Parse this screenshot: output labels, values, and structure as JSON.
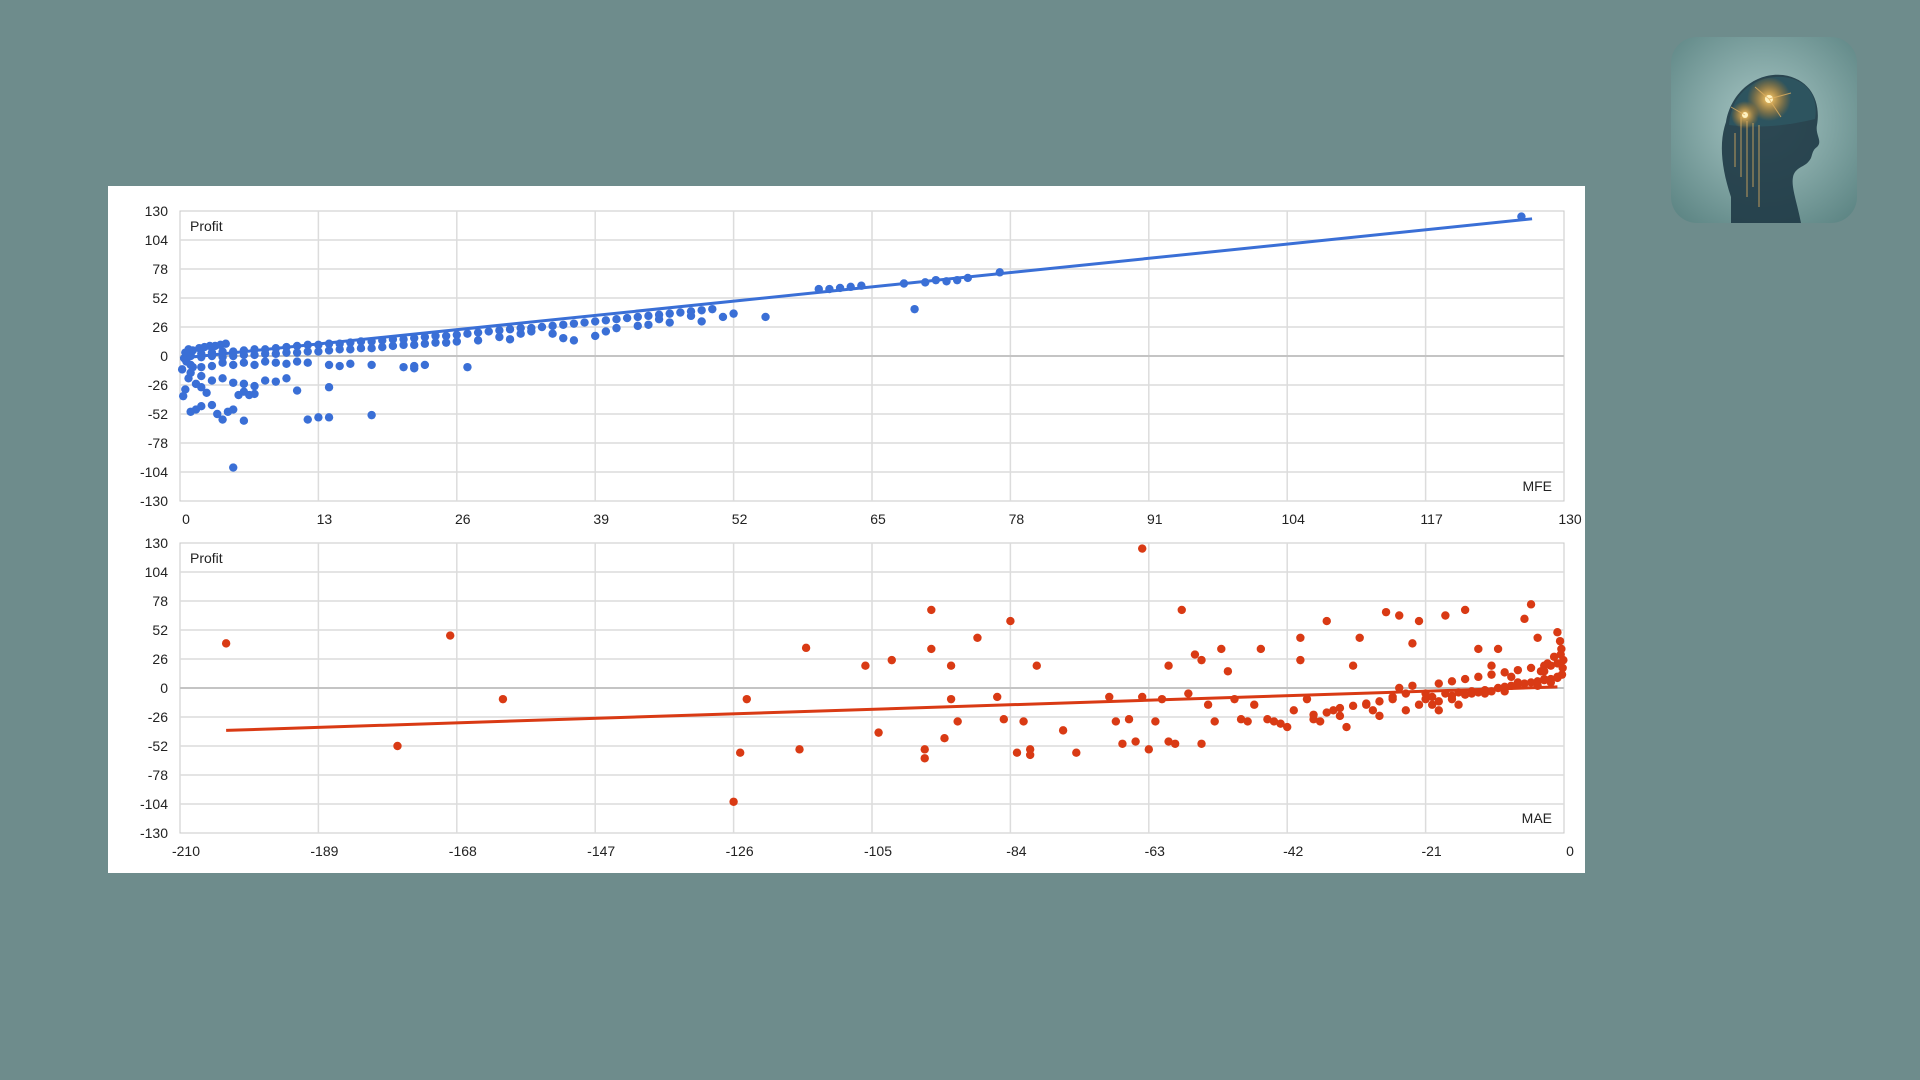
{
  "logo": {
    "icon": "ai-brain-head-icon"
  },
  "chart_data": [
    {
      "type": "scatter",
      "ylabel": "Profit",
      "xlabel": "MFE",
      "xlim": [
        0,
        130
      ],
      "ylim": [
        -130,
        130
      ],
      "x_ticks": [
        "0",
        "13",
        "26",
        "39",
        "52",
        "65",
        "78",
        "91",
        "104",
        "117",
        "130"
      ],
      "y_ticks": [
        "130",
        "104",
        "78",
        "52",
        "26",
        "0",
        "-26",
        "-52",
        "-78",
        "-104",
        "-130"
      ],
      "grid": true,
      "color": "#3a6fd6",
      "trendline": {
        "x": [
          0,
          127
        ],
        "y": [
          -2,
          123
        ]
      },
      "points": [
        [
          0.3,
          -36
        ],
        [
          0.5,
          -30
        ],
        [
          0.8,
          -20
        ],
        [
          1,
          -15
        ],
        [
          1.2,
          -10
        ],
        [
          0.6,
          -5
        ],
        [
          0.4,
          -2
        ],
        [
          1.5,
          -25
        ],
        [
          2,
          -28
        ],
        [
          2.5,
          -33
        ],
        [
          1,
          -50
        ],
        [
          1.5,
          -48
        ],
        [
          2,
          -45
        ],
        [
          3,
          -44
        ],
        [
          3.5,
          -52
        ],
        [
          4,
          -57
        ],
        [
          4.5,
          -50
        ],
        [
          5,
          -48
        ],
        [
          6,
          -58
        ],
        [
          5.5,
          -35
        ],
        [
          6,
          -32
        ],
        [
          6.5,
          -35
        ],
        [
          7,
          -34
        ],
        [
          5,
          -100
        ],
        [
          11,
          -31
        ],
        [
          12,
          -57
        ],
        [
          13,
          -55
        ],
        [
          14,
          -55
        ],
        [
          14,
          -28
        ],
        [
          18,
          -53
        ],
        [
          2,
          -18
        ],
        [
          3,
          -22
        ],
        [
          4,
          -20
        ],
        [
          5,
          -24
        ],
        [
          6,
          -25
        ],
        [
          7,
          -27
        ],
        [
          8,
          -22
        ],
        [
          9,
          -23
        ],
        [
          10,
          -20
        ],
        [
          1,
          -8
        ],
        [
          2,
          -10
        ],
        [
          3,
          -9
        ],
        [
          4,
          -6
        ],
        [
          5,
          -8
        ],
        [
          6,
          -6
        ],
        [
          7,
          -8
        ],
        [
          8,
          -5
        ],
        [
          9,
          -6
        ],
        [
          10,
          -7
        ],
        [
          11,
          -5
        ],
        [
          12,
          -6
        ],
        [
          14,
          -8
        ],
        [
          15,
          -9
        ],
        [
          16,
          -7
        ],
        [
          18,
          -8
        ],
        [
          21,
          -10
        ],
        [
          22,
          -9
        ],
        [
          23,
          -8
        ],
        [
          27,
          -10
        ],
        [
          22,
          -11
        ],
        [
          1,
          1
        ],
        [
          2,
          2
        ],
        [
          3,
          3
        ],
        [
          4,
          4
        ],
        [
          5,
          4
        ],
        [
          6,
          5
        ],
        [
          7,
          6
        ],
        [
          8,
          6
        ],
        [
          9,
          7
        ],
        [
          10,
          8
        ],
        [
          11,
          9
        ],
        [
          12,
          10
        ],
        [
          13,
          10
        ],
        [
          14,
          11
        ],
        [
          15,
          11
        ],
        [
          16,
          12
        ],
        [
          17,
          13
        ],
        [
          18,
          13
        ],
        [
          19,
          14
        ],
        [
          20,
          15
        ],
        [
          21,
          15
        ],
        [
          22,
          16
        ],
        [
          23,
          17
        ],
        [
          24,
          18
        ],
        [
          25,
          18
        ],
        [
          26,
          19
        ],
        [
          27,
          20
        ],
        [
          28,
          21
        ],
        [
          29,
          22
        ],
        [
          30,
          23
        ],
        [
          31,
          24
        ],
        [
          32,
          25
        ],
        [
          33,
          25
        ],
        [
          34,
          26
        ],
        [
          35,
          27
        ],
        [
          36,
          28
        ],
        [
          37,
          29
        ],
        [
          38,
          30
        ],
        [
          39,
          31
        ],
        [
          40,
          32
        ],
        [
          41,
          33
        ],
        [
          42,
          34
        ],
        [
          43,
          35
        ],
        [
          44,
          36
        ],
        [
          45,
          37
        ],
        [
          46,
          38
        ],
        [
          47,
          39
        ],
        [
          48,
          40
        ],
        [
          49,
          41
        ],
        [
          50,
          42
        ],
        [
          28,
          14
        ],
        [
          30,
          17
        ],
        [
          31,
          15
        ],
        [
          32,
          20
        ],
        [
          33,
          22
        ],
        [
          35,
          20
        ],
        [
          36,
          16
        ],
        [
          37,
          14
        ],
        [
          39,
          18
        ],
        [
          40,
          22
        ],
        [
          41,
          25
        ],
        [
          43,
          27
        ],
        [
          44,
          28
        ],
        [
          45,
          33
        ],
        [
          46,
          30
        ],
        [
          48,
          36
        ],
        [
          49,
          31
        ],
        [
          51,
          35
        ],
        [
          52,
          38
        ],
        [
          55,
          35
        ],
        [
          60,
          60
        ],
        [
          61,
          60
        ],
        [
          62,
          61
        ],
        [
          63,
          62
        ],
        [
          64,
          63
        ],
        [
          68,
          65
        ],
        [
          70,
          66
        ],
        [
          71,
          68
        ],
        [
          72,
          67
        ],
        [
          73,
          68
        ],
        [
          74,
          70
        ],
        [
          77,
          75
        ],
        [
          69,
          42
        ],
        [
          126,
          125
        ],
        [
          1,
          0
        ],
        [
          2,
          -1
        ],
        [
          3,
          0
        ],
        [
          4,
          -1
        ],
        [
          5,
          0
        ],
        [
          6,
          1
        ],
        [
          7,
          1
        ],
        [
          8,
          2
        ],
        [
          9,
          2
        ],
        [
          10,
          3
        ],
        [
          11,
          3
        ],
        [
          12,
          4
        ],
        [
          13,
          4
        ],
        [
          14,
          5
        ],
        [
          15,
          6
        ],
        [
          16,
          6
        ],
        [
          17,
          7
        ],
        [
          18,
          7
        ],
        [
          19,
          8
        ],
        [
          20,
          9
        ],
        [
          21,
          10
        ],
        [
          22,
          10
        ],
        [
          23,
          11
        ],
        [
          24,
          12
        ],
        [
          25,
          12
        ],
        [
          26,
          13
        ],
        [
          0.5,
          3
        ],
        [
          0.8,
          6
        ],
        [
          1.2,
          5
        ],
        [
          1.8,
          7
        ],
        [
          2.3,
          8
        ],
        [
          2.8,
          9
        ],
        [
          3.3,
          9
        ],
        [
          3.8,
          10
        ],
        [
          4.3,
          11
        ],
        [
          0.2,
          -12
        ]
      ]
    },
    {
      "type": "scatter",
      "ylabel": "Profit",
      "xlabel": "MAE",
      "xlim": [
        -210,
        0
      ],
      "ylim": [
        -130,
        130
      ],
      "x_ticks": [
        "-210",
        "-189",
        "-168",
        "-147",
        "-126",
        "-105",
        "-84",
        "-63",
        "-42",
        "-21",
        "0"
      ],
      "y_ticks": [
        "130",
        "104",
        "78",
        "52",
        "26",
        "0",
        "-26",
        "-52",
        "-78",
        "-104",
        "-130"
      ],
      "grid": true,
      "color": "#d93a14",
      "trendline": {
        "x": [
          -203,
          -1
        ],
        "y": [
          -38,
          1
        ]
      },
      "points": [
        [
          -203,
          40
        ],
        [
          -177,
          -52
        ],
        [
          -169,
          47
        ],
        [
          -161,
          -10
        ],
        [
          -126,
          -102
        ],
        [
          -125,
          -58
        ],
        [
          -124,
          -10
        ],
        [
          -116,
          -55
        ],
        [
          -115,
          36
        ],
        [
          -106,
          20
        ],
        [
          -104,
          -40
        ],
        [
          -102,
          25
        ],
        [
          -97,
          -55
        ],
        [
          -97,
          -63
        ],
        [
          -96,
          70
        ],
        [
          -96,
          35
        ],
        [
          -94,
          -45
        ],
        [
          -93,
          20
        ],
        [
          -93,
          -10
        ],
        [
          -92,
          -30
        ],
        [
          -89,
          45
        ],
        [
          -86,
          -8
        ],
        [
          -85,
          -28
        ],
        [
          -84,
          60
        ],
        [
          -83,
          -58
        ],
        [
          -82,
          -30
        ],
        [
          -81,
          -55
        ],
        [
          -81,
          -60
        ],
        [
          -80,
          20
        ],
        [
          -76,
          -38
        ],
        [
          -74,
          -58
        ],
        [
          -69,
          -8
        ],
        [
          -68,
          -30
        ],
        [
          -67,
          -50
        ],
        [
          -66,
          -28
        ],
        [
          -65,
          -48
        ],
        [
          -64,
          125
        ],
        [
          -64,
          -8
        ],
        [
          -63,
          -55
        ],
        [
          -62,
          -30
        ],
        [
          -61,
          -10
        ],
        [
          -60,
          20
        ],
        [
          -60,
          -48
        ],
        [
          -59,
          -50
        ],
        [
          -58,
          70
        ],
        [
          -57,
          -5
        ],
        [
          -56,
          30
        ],
        [
          -55,
          -50
        ],
        [
          -55,
          25
        ],
        [
          -54,
          -15
        ],
        [
          -53,
          -30
        ],
        [
          -52,
          35
        ],
        [
          -51,
          15
        ],
        [
          -50,
          -10
        ],
        [
          -49,
          -28
        ],
        [
          -48,
          -30
        ],
        [
          -47,
          -15
        ],
        [
          -46,
          35
        ],
        [
          -45,
          -28
        ],
        [
          -44,
          -30
        ],
        [
          -43,
          -32
        ],
        [
          -42,
          -35
        ],
        [
          -41,
          -20
        ],
        [
          -40,
          25
        ],
        [
          -40,
          45
        ],
        [
          -39,
          -10
        ],
        [
          -38,
          -28
        ],
        [
          -37,
          -30
        ],
        [
          -36,
          60
        ],
        [
          -35,
          -20
        ],
        [
          -34,
          -25
        ],
        [
          -33,
          -35
        ],
        [
          -32,
          20
        ],
        [
          -31,
          45
        ],
        [
          -30,
          -15
        ],
        [
          -29,
          -20
        ],
        [
          -28,
          -25
        ],
        [
          -27,
          68
        ],
        [
          -26,
          -10
        ],
        [
          -25,
          65
        ],
        [
          -24,
          -20
        ],
        [
          -23,
          40
        ],
        [
          -22,
          60
        ],
        [
          -21,
          -5
        ],
        [
          -20,
          -15
        ],
        [
          -19,
          -20
        ],
        [
          -18,
          65
        ],
        [
          -17,
          -10
        ],
        [
          -16,
          -15
        ],
        [
          -15,
          70
        ],
        [
          -14,
          -5
        ],
        [
          -13,
          35
        ],
        [
          -12,
          -5
        ],
        [
          -11,
          20
        ],
        [
          -10,
          35
        ],
        [
          -9,
          -3
        ],
        [
          -8,
          10
        ],
        [
          -7,
          5
        ],
        [
          -6,
          62
        ],
        [
          -5,
          75
        ],
        [
          -4,
          45
        ],
        [
          -3,
          15
        ],
        [
          -2,
          20
        ],
        [
          -1,
          50
        ],
        [
          -0.5,
          30
        ],
        [
          -1,
          10
        ],
        [
          -2,
          5
        ],
        [
          -3,
          8
        ],
        [
          -4,
          2
        ],
        [
          -22,
          -15
        ],
        [
          -21,
          -10
        ],
        [
          -20,
          -8
        ],
        [
          -19,
          -12
        ],
        [
          -18,
          -5
        ],
        [
          -17,
          -7
        ],
        [
          -16,
          -4
        ],
        [
          -15,
          -6
        ],
        [
          -14,
          -3
        ],
        [
          -13,
          -4
        ],
        [
          -12,
          -2
        ],
        [
          -11,
          -3
        ],
        [
          -10,
          0
        ],
        [
          -9,
          1
        ],
        [
          -8,
          2
        ],
        [
          -7,
          3
        ],
        [
          -6,
          4
        ],
        [
          -5,
          5
        ],
        [
          -4,
          6
        ],
        [
          -3,
          7
        ],
        [
          -2,
          8
        ],
        [
          -1,
          9
        ],
        [
          -0.3,
          12
        ],
        [
          -0.2,
          18
        ],
        [
          -0.1,
          25
        ],
        [
          -0.4,
          35
        ],
        [
          -0.6,
          42
        ],
        [
          -1.5,
          28
        ],
        [
          -2.5,
          22
        ],
        [
          -3.5,
          15
        ],
        [
          -24,
          -5
        ],
        [
          -26,
          -8
        ],
        [
          -28,
          -12
        ],
        [
          -30,
          -14
        ],
        [
          -32,
          -16
        ],
        [
          -34,
          -18
        ],
        [
          -36,
          -22
        ],
        [
          -38,
          -24
        ],
        [
          -25,
          0
        ],
        [
          -23,
          2
        ],
        [
          -19,
          4
        ],
        [
          -17,
          6
        ],
        [
          -15,
          8
        ],
        [
          -13,
          10
        ],
        [
          -11,
          12
        ],
        [
          -9,
          14
        ],
        [
          -7,
          16
        ],
        [
          -5,
          18
        ],
        [
          -3,
          20
        ],
        [
          -1,
          22
        ]
      ]
    }
  ]
}
